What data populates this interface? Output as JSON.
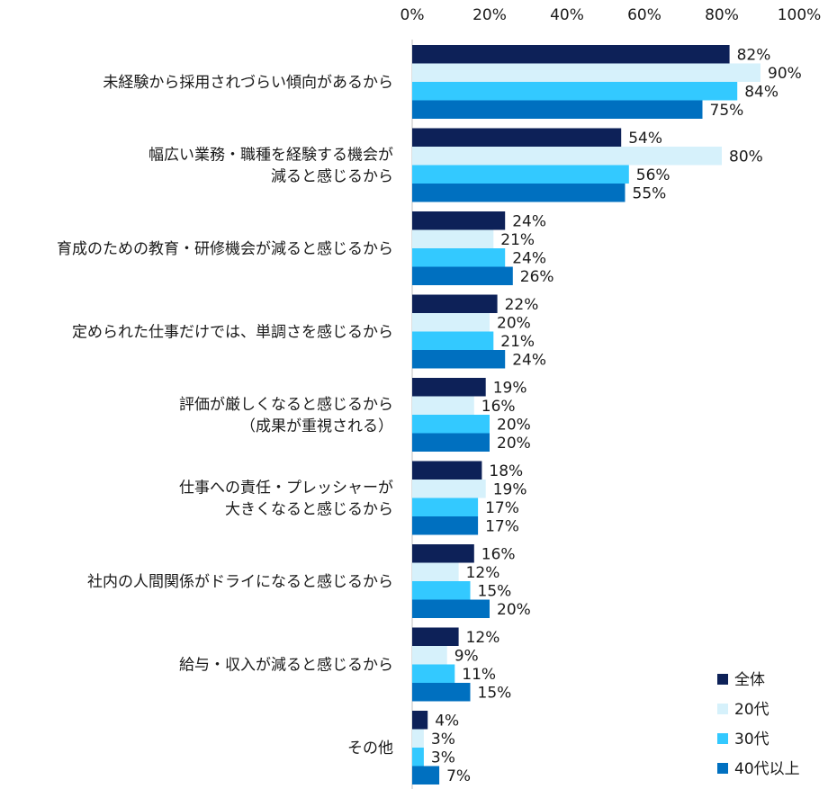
{
  "chart_data": {
    "type": "bar",
    "orientation": "horizontal",
    "categories": [
      [
        "未経験から採用されづらい傾向があるから"
      ],
      [
        "幅広い業務・職種を経験する機会が",
        "減ると感じるから"
      ],
      [
        "育成のための教育・研修機会が減ると感じるから"
      ],
      [
        "定められた仕事だけでは、単調さを感じるから"
      ],
      [
        "評価が厳しくなると感じるから",
        "（成果が重視される）"
      ],
      [
        "仕事への責任・プレッシャーが",
        "大きくなると感じるから"
      ],
      [
        "社内の人間関係がドライになると感じるから"
      ],
      [
        "給与・収入が減ると感じるから"
      ],
      [
        "その他"
      ]
    ],
    "series": [
      {
        "name": "全体",
        "color": "#0d2158",
        "values": [
          82,
          54,
          24,
          22,
          19,
          18,
          16,
          12,
          4
        ]
      },
      {
        "name": "20代",
        "color": "#d6f1fb",
        "values": [
          90,
          80,
          21,
          20,
          16,
          19,
          12,
          9,
          3
        ]
      },
      {
        "name": "30代",
        "color": "#33c9ff",
        "values": [
          84,
          56,
          24,
          21,
          20,
          17,
          15,
          11,
          3
        ]
      },
      {
        "name": "40代以上",
        "color": "#0070c0",
        "values": [
          75,
          55,
          26,
          24,
          20,
          17,
          20,
          15,
          7
        ]
      }
    ],
    "value_suffix": "%",
    "xlim": [
      0,
      100
    ],
    "xticks": [
      "0%",
      "20%",
      "40%",
      "60%",
      "80%",
      "100%"
    ],
    "legend_position": "bottom-right",
    "grid": false
  }
}
